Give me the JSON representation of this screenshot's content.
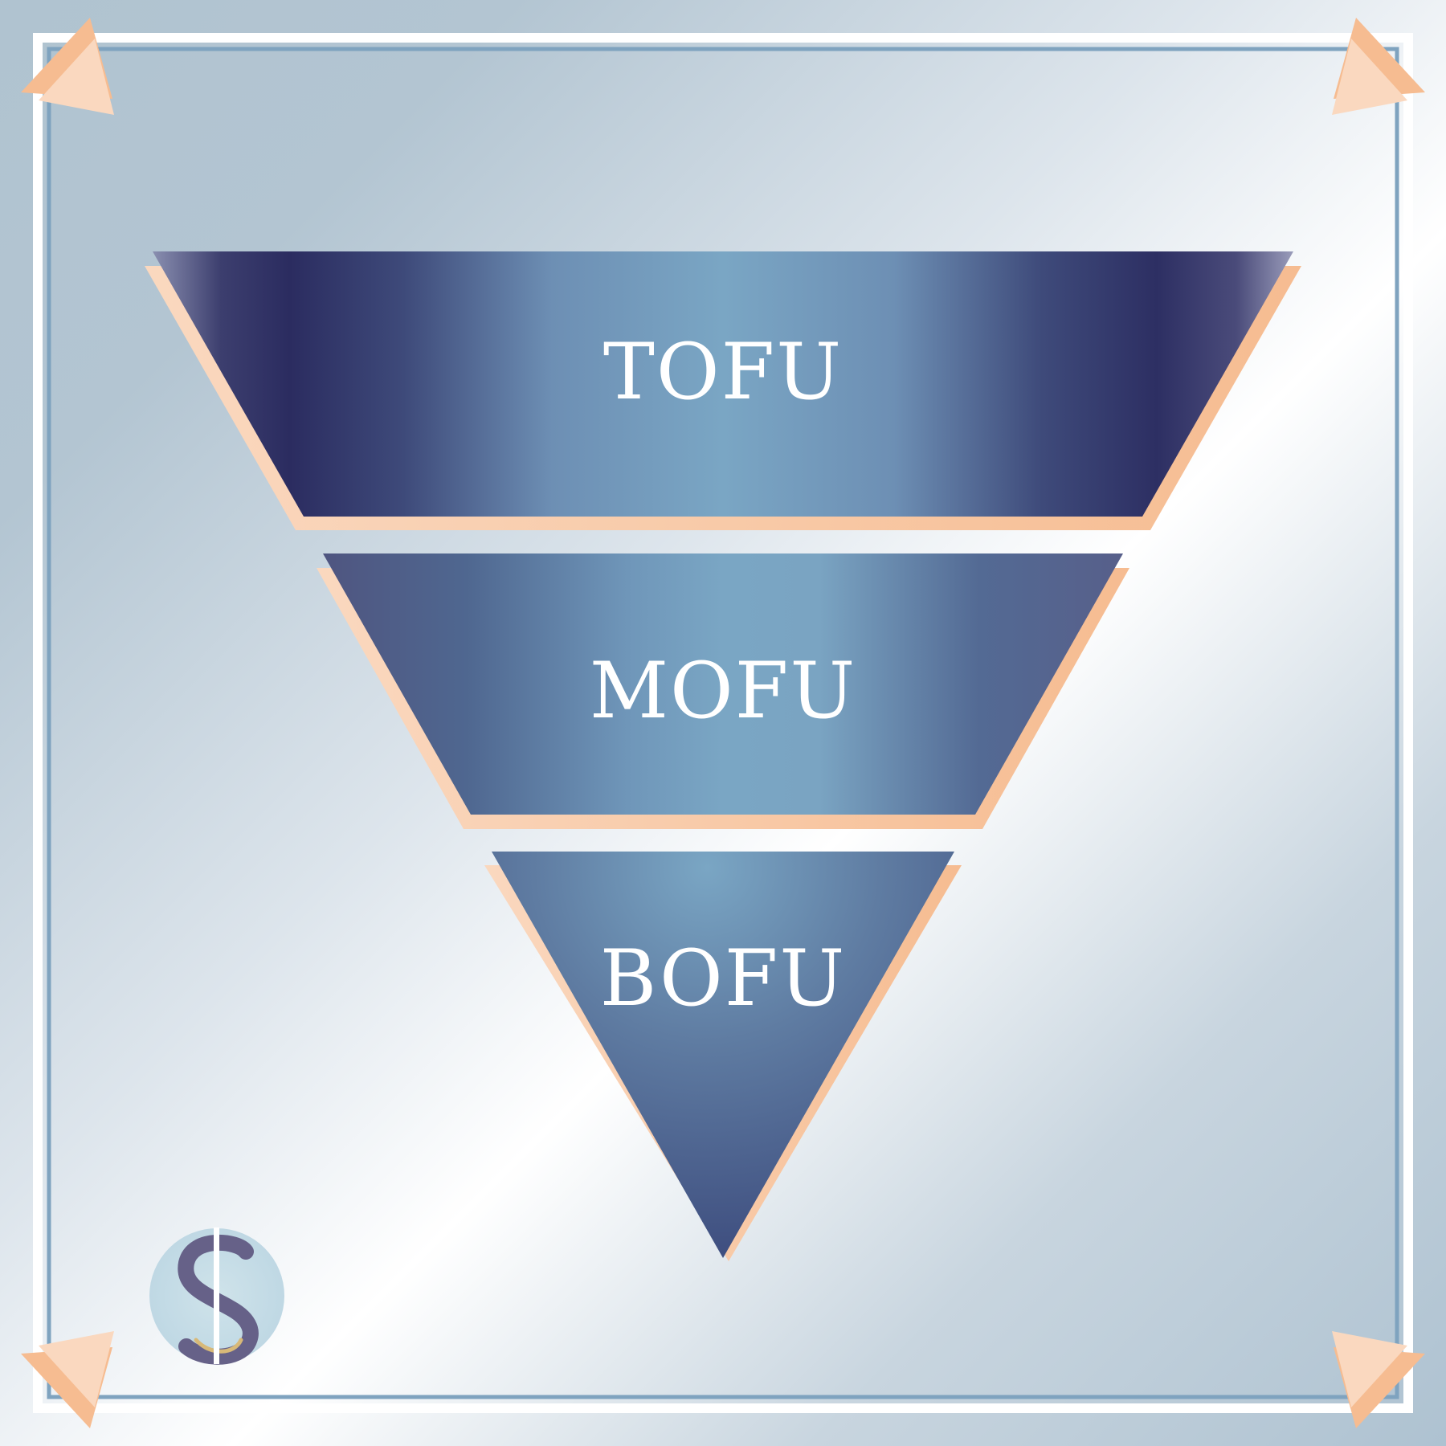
{
  "diagram": {
    "type": "inverted-funnel",
    "stages": [
      {
        "id": "tofu",
        "label": "TOFU"
      },
      {
        "id": "mofu",
        "label": "MOFU"
      },
      {
        "id": "bofu",
        "label": "BOFU"
      }
    ]
  },
  "logo": {
    "icon": "letter-s-monogram-logo"
  },
  "decorations": {
    "corner_icon": "triangle-arrow-icon"
  },
  "colors": {
    "background_light": "#ffffff",
    "background_steel": "#b0c3d0",
    "frame_white": "#ffffff",
    "frame_blue": "#7fa3bf",
    "funnel_dark": "#2b2c60",
    "funnel_mid": "#4d6591",
    "funnel_light": "#7aa6c4",
    "accent_peach": "#f6bc91",
    "accent_peach_light": "#fad8bf",
    "logo_circle": "#c4dce6",
    "logo_letter": "#666188"
  }
}
